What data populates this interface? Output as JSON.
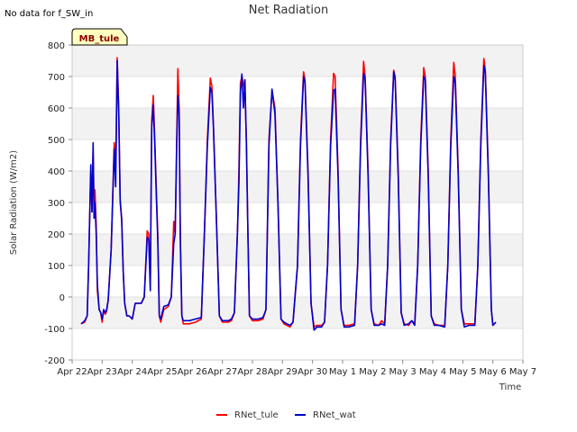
{
  "chart_data": {
    "type": "line",
    "title": "Net Radiation",
    "note": "No data for f_SW_in",
    "tag": "MB_tule",
    "xlabel": "Time",
    "ylabel": "Solar Radiation (W/m2)",
    "ylim": [
      -200,
      800
    ],
    "yticks": [
      -200,
      -100,
      0,
      100,
      200,
      300,
      400,
      500,
      600,
      700,
      800
    ],
    "xlim": [
      0,
      15
    ],
    "xtick_labels": [
      "Apr 22",
      "Apr 23",
      "Apr 24",
      "Apr 25",
      "Apr 26",
      "Apr 27",
      "Apr 28",
      "Apr 29",
      "Apr 30",
      "May 1",
      "May 2",
      "May 3",
      "May 4",
      "May 5",
      "May 6",
      "May 7"
    ],
    "grid": true,
    "legend_position": "bottom",
    "x_units": "days since Apr 22",
    "series": [
      {
        "name": "RNet_tule",
        "color": "#ff0000",
        "points": [
          [
            0.3,
            -85
          ],
          [
            0.42,
            -80
          ],
          [
            0.5,
            -60
          ],
          [
            0.55,
            100
          ],
          [
            0.62,
            400
          ],
          [
            0.66,
            270
          ],
          [
            0.7,
            460
          ],
          [
            0.73,
            300
          ],
          [
            0.76,
            340
          ],
          [
            0.8,
            230
          ],
          [
            0.84,
            20
          ],
          [
            0.9,
            -40
          ],
          [
            0.95,
            -50
          ],
          [
            1.0,
            -80
          ],
          [
            1.05,
            -40
          ],
          [
            1.1,
            -55
          ],
          [
            1.15,
            -45
          ],
          [
            1.2,
            -10
          ],
          [
            1.3,
            150
          ],
          [
            1.4,
            490
          ],
          [
            1.45,
            400
          ],
          [
            1.5,
            760
          ],
          [
            1.55,
            600
          ],
          [
            1.6,
            300
          ],
          [
            1.65,
            250
          ],
          [
            1.7,
            80
          ],
          [
            1.75,
            -20
          ],
          [
            1.82,
            -60
          ],
          [
            1.9,
            -60
          ],
          [
            2.0,
            -70
          ],
          [
            2.1,
            -20
          ],
          [
            2.3,
            -20
          ],
          [
            2.4,
            0
          ],
          [
            2.5,
            210
          ],
          [
            2.55,
            200
          ],
          [
            2.6,
            50
          ],
          [
            2.65,
            560
          ],
          [
            2.7,
            640
          ],
          [
            2.75,
            500
          ],
          [
            2.8,
            350
          ],
          [
            2.85,
            200
          ],
          [
            2.9,
            -60
          ],
          [
            2.95,
            -80
          ],
          [
            3.05,
            -40
          ],
          [
            3.2,
            -30
          ],
          [
            3.3,
            0
          ],
          [
            3.38,
            240
          ],
          [
            3.43,
            200
          ],
          [
            3.48,
            500
          ],
          [
            3.52,
            725
          ],
          [
            3.56,
            600
          ],
          [
            3.6,
            200
          ],
          [
            3.65,
            -60
          ],
          [
            3.7,
            -85
          ],
          [
            3.9,
            -85
          ],
          [
            4.1,
            -80
          ],
          [
            4.3,
            -70
          ],
          [
            4.4,
            200
          ],
          [
            4.5,
            500
          ],
          [
            4.6,
            695
          ],
          [
            4.65,
            670
          ],
          [
            4.7,
            550
          ],
          [
            4.8,
            250
          ],
          [
            4.9,
            -60
          ],
          [
            5.0,
            -80
          ],
          [
            5.2,
            -80
          ],
          [
            5.3,
            -75
          ],
          [
            5.4,
            -50
          ],
          [
            5.5,
            200
          ],
          [
            5.55,
            400
          ],
          [
            5.6,
            680
          ],
          [
            5.65,
            700
          ],
          [
            5.7,
            680
          ],
          [
            5.75,
            650
          ],
          [
            5.8,
            500
          ],
          [
            5.85,
            200
          ],
          [
            5.9,
            -60
          ],
          [
            6.0,
            -75
          ],
          [
            6.2,
            -75
          ],
          [
            6.35,
            -70
          ],
          [
            6.45,
            -40
          ],
          [
            6.55,
            500
          ],
          [
            6.65,
            655
          ],
          [
            6.75,
            600
          ],
          [
            6.85,
            300
          ],
          [
            6.95,
            -70
          ],
          [
            7.05,
            -85
          ],
          [
            7.15,
            -90
          ],
          [
            7.25,
            -95
          ],
          [
            7.35,
            -80
          ],
          [
            7.5,
            100
          ],
          [
            7.6,
            500
          ],
          [
            7.7,
            715
          ],
          [
            7.75,
            690
          ],
          [
            7.85,
            400
          ],
          [
            7.95,
            -20
          ],
          [
            8.05,
            -95
          ],
          [
            8.15,
            -90
          ],
          [
            8.3,
            -90
          ],
          [
            8.4,
            -80
          ],
          [
            8.5,
            100
          ],
          [
            8.6,
            500
          ],
          [
            8.7,
            710
          ],
          [
            8.75,
            700
          ],
          [
            8.85,
            400
          ],
          [
            8.95,
            -40
          ],
          [
            9.05,
            -90
          ],
          [
            9.2,
            -90
          ],
          [
            9.4,
            -85
          ],
          [
            9.5,
            100
          ],
          [
            9.6,
            500
          ],
          [
            9.7,
            748
          ],
          [
            9.75,
            700
          ],
          [
            9.85,
            400
          ],
          [
            9.95,
            -40
          ],
          [
            10.05,
            -85
          ],
          [
            10.2,
            -90
          ],
          [
            10.3,
            -75
          ],
          [
            10.4,
            -85
          ],
          [
            10.5,
            100
          ],
          [
            10.6,
            500
          ],
          [
            10.7,
            720
          ],
          [
            10.75,
            700
          ],
          [
            10.85,
            400
          ],
          [
            10.95,
            -50
          ],
          [
            11.05,
            -85
          ],
          [
            11.2,
            -90
          ],
          [
            11.3,
            -75
          ],
          [
            11.4,
            -85
          ],
          [
            11.5,
            100
          ],
          [
            11.6,
            500
          ],
          [
            11.7,
            728
          ],
          [
            11.75,
            700
          ],
          [
            11.85,
            400
          ],
          [
            11.95,
            -60
          ],
          [
            12.05,
            -85
          ],
          [
            12.2,
            -90
          ],
          [
            12.4,
            -90
          ],
          [
            12.5,
            100
          ],
          [
            12.6,
            500
          ],
          [
            12.7,
            745
          ],
          [
            12.75,
            700
          ],
          [
            12.85,
            400
          ],
          [
            12.95,
            -40
          ],
          [
            13.05,
            -85
          ],
          [
            13.2,
            -85
          ],
          [
            13.4,
            -85
          ],
          [
            13.5,
            100
          ],
          [
            13.6,
            500
          ],
          [
            13.7,
            757
          ],
          [
            13.75,
            720
          ],
          [
            13.85,
            400
          ],
          [
            13.95,
            -40
          ],
          [
            14.0,
            -90
          ],
          [
            14.1,
            -80
          ]
        ]
      },
      {
        "name": "RNet_wat",
        "color": "#0000cc",
        "points": [
          [
            0.3,
            -85
          ],
          [
            0.42,
            -75
          ],
          [
            0.5,
            -60
          ],
          [
            0.55,
            100
          ],
          [
            0.62,
            420
          ],
          [
            0.66,
            270
          ],
          [
            0.7,
            490
          ],
          [
            0.73,
            250
          ],
          [
            0.76,
            300
          ],
          [
            0.8,
            200
          ],
          [
            0.84,
            40
          ],
          [
            0.9,
            -40
          ],
          [
            0.95,
            -50
          ],
          [
            1.0,
            -70
          ],
          [
            1.05,
            -40
          ],
          [
            1.1,
            -50
          ],
          [
            1.15,
            -40
          ],
          [
            1.2,
            -10
          ],
          [
            1.3,
            150
          ],
          [
            1.4,
            470
          ],
          [
            1.45,
            350
          ],
          [
            1.5,
            750
          ],
          [
            1.55,
            580
          ],
          [
            1.6,
            310
          ],
          [
            1.65,
            240
          ],
          [
            1.7,
            80
          ],
          [
            1.75,
            -20
          ],
          [
            1.82,
            -60
          ],
          [
            1.9,
            -60
          ],
          [
            2.0,
            -70
          ],
          [
            2.1,
            -20
          ],
          [
            2.3,
            -20
          ],
          [
            2.4,
            0
          ],
          [
            2.5,
            190
          ],
          [
            2.55,
            180
          ],
          [
            2.6,
            20
          ],
          [
            2.65,
            540
          ],
          [
            2.7,
            610
          ],
          [
            2.75,
            480
          ],
          [
            2.8,
            330
          ],
          [
            2.85,
            180
          ],
          [
            2.9,
            -60
          ],
          [
            2.95,
            -70
          ],
          [
            3.05,
            -30
          ],
          [
            3.2,
            -25
          ],
          [
            3.3,
            0
          ],
          [
            3.38,
            170
          ],
          [
            3.43,
            200
          ],
          [
            3.48,
            480
          ],
          [
            3.52,
            640
          ],
          [
            3.56,
            580
          ],
          [
            3.6,
            180
          ],
          [
            3.65,
            -60
          ],
          [
            3.7,
            -75
          ],
          [
            3.9,
            -75
          ],
          [
            4.1,
            -70
          ],
          [
            4.3,
            -65
          ],
          [
            4.4,
            200
          ],
          [
            4.5,
            480
          ],
          [
            4.6,
            665
          ],
          [
            4.65,
            650
          ],
          [
            4.7,
            540
          ],
          [
            4.8,
            250
          ],
          [
            4.9,
            -60
          ],
          [
            5.0,
            -75
          ],
          [
            5.2,
            -75
          ],
          [
            5.3,
            -70
          ],
          [
            5.4,
            -50
          ],
          [
            5.5,
            200
          ],
          [
            5.55,
            360
          ],
          [
            5.6,
            650
          ],
          [
            5.65,
            708
          ],
          [
            5.7,
            600
          ],
          [
            5.75,
            690
          ],
          [
            5.8,
            480
          ],
          [
            5.85,
            200
          ],
          [
            5.9,
            -60
          ],
          [
            6.0,
            -70
          ],
          [
            6.2,
            -70
          ],
          [
            6.35,
            -65
          ],
          [
            6.45,
            -40
          ],
          [
            6.55,
            480
          ],
          [
            6.65,
            660
          ],
          [
            6.75,
            580
          ],
          [
            6.85,
            300
          ],
          [
            6.95,
            -70
          ],
          [
            7.05,
            -80
          ],
          [
            7.15,
            -85
          ],
          [
            7.25,
            -90
          ],
          [
            7.35,
            -80
          ],
          [
            7.5,
            100
          ],
          [
            7.6,
            480
          ],
          [
            7.7,
            700
          ],
          [
            7.75,
            680
          ],
          [
            7.85,
            380
          ],
          [
            7.95,
            -20
          ],
          [
            8.05,
            -105
          ],
          [
            8.15,
            -95
          ],
          [
            8.3,
            -95
          ],
          [
            8.4,
            -80
          ],
          [
            8.5,
            100
          ],
          [
            8.6,
            480
          ],
          [
            8.7,
            655
          ],
          [
            8.75,
            660
          ],
          [
            8.85,
            380
          ],
          [
            8.95,
            -40
          ],
          [
            9.05,
            -95
          ],
          [
            9.2,
            -95
          ],
          [
            9.4,
            -90
          ],
          [
            9.5,
            100
          ],
          [
            9.6,
            480
          ],
          [
            9.7,
            710
          ],
          [
            9.75,
            690
          ],
          [
            9.85,
            380
          ],
          [
            9.95,
            -40
          ],
          [
            10.05,
            -90
          ],
          [
            10.2,
            -90
          ],
          [
            10.3,
            -85
          ],
          [
            10.4,
            -90
          ],
          [
            10.5,
            100
          ],
          [
            10.6,
            480
          ],
          [
            10.7,
            715
          ],
          [
            10.75,
            690
          ],
          [
            10.85,
            380
          ],
          [
            10.95,
            -50
          ],
          [
            11.05,
            -90
          ],
          [
            11.2,
            -85
          ],
          [
            11.3,
            -75
          ],
          [
            11.4,
            -90
          ],
          [
            11.5,
            100
          ],
          [
            11.6,
            480
          ],
          [
            11.7,
            700
          ],
          [
            11.75,
            690
          ],
          [
            11.85,
            380
          ],
          [
            11.95,
            -60
          ],
          [
            12.05,
            -90
          ],
          [
            12.2,
            -90
          ],
          [
            12.4,
            -95
          ],
          [
            12.5,
            100
          ],
          [
            12.6,
            480
          ],
          [
            12.7,
            700
          ],
          [
            12.75,
            680
          ],
          [
            12.85,
            380
          ],
          [
            12.95,
            -40
          ],
          [
            13.05,
            -95
          ],
          [
            13.2,
            -90
          ],
          [
            13.4,
            -90
          ],
          [
            13.5,
            100
          ],
          [
            13.6,
            480
          ],
          [
            13.7,
            735
          ],
          [
            13.75,
            710
          ],
          [
            13.85,
            380
          ],
          [
            13.95,
            -40
          ],
          [
            14.0,
            -90
          ],
          [
            14.1,
            -80
          ]
        ]
      }
    ]
  }
}
